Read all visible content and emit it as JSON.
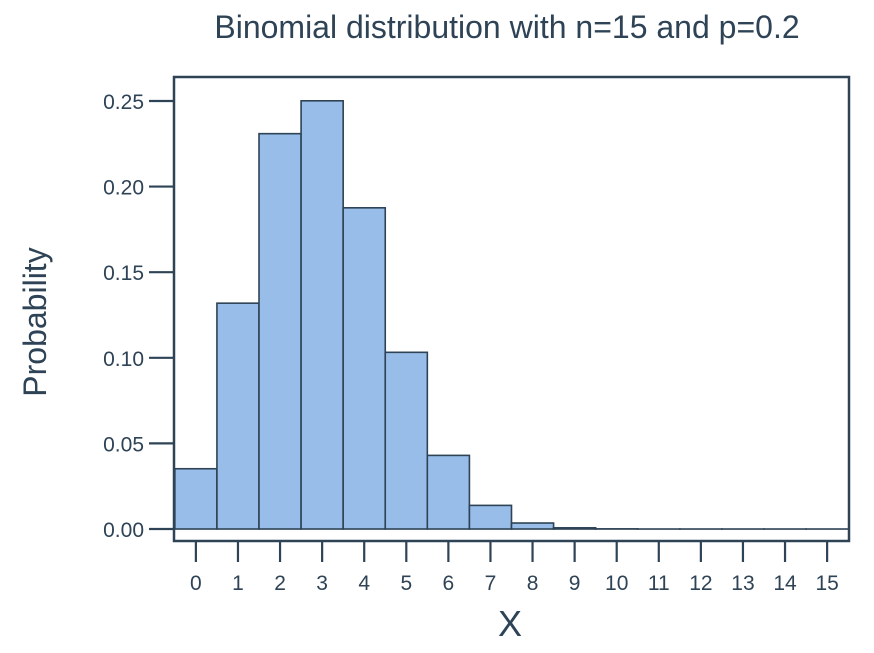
{
  "chart_data": {
    "type": "bar",
    "title": "Binomial distribution with n=15 and p=0.2",
    "xlabel": "X",
    "ylabel": "Probability",
    "categories": [
      "0",
      "1",
      "2",
      "3",
      "4",
      "5",
      "6",
      "7",
      "8",
      "9",
      "10",
      "11",
      "12",
      "13",
      "14",
      "15"
    ],
    "values": [
      0.0352,
      0.1319,
      0.2309,
      0.2501,
      0.1876,
      0.1032,
      0.043,
      0.0138,
      0.0035,
      0.0007,
      0.0001,
      0.0,
      0.0,
      0.0,
      0.0,
      0.0
    ],
    "ylim": [
      -0.007,
      0.264
    ],
    "xlim": [
      -0.52,
      15.52
    ],
    "yticks": [
      {
        "value": 0.0,
        "label": "0.00"
      },
      {
        "value": 0.05,
        "label": "0.05"
      },
      {
        "value": 0.1,
        "label": "0.10"
      },
      {
        "value": 0.15,
        "label": "0.15"
      },
      {
        "value": 0.2,
        "label": "0.20"
      },
      {
        "value": 0.25,
        "label": "0.25"
      }
    ],
    "grid": false,
    "legend": "none",
    "colors": {
      "bar_fill": "#97bde8",
      "bar_stroke": "#2e4356",
      "axis": "#2e4356",
      "text": "#2e4356"
    }
  }
}
